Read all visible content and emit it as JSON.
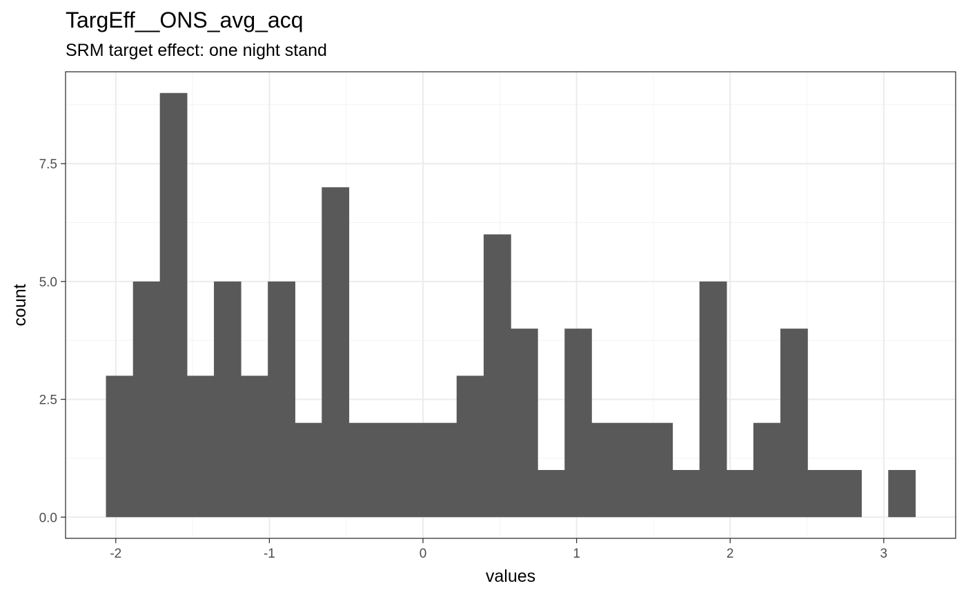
{
  "chart_data": {
    "type": "bar",
    "title": "TargEff__ONS_avg_acq",
    "subtitle": "SRM target effect: one night stand",
    "xlabel": "values",
    "ylabel": "count",
    "bin_width": 0.1756,
    "bins": [
      {
        "x0": -2.064,
        "x1": -1.888,
        "count": 3
      },
      {
        "x0": -1.888,
        "x1": -1.713,
        "count": 5
      },
      {
        "x0": -1.713,
        "x1": -1.537,
        "count": 9
      },
      {
        "x0": -1.537,
        "x1": -1.361,
        "count": 3
      },
      {
        "x0": -1.361,
        "x1": -1.186,
        "count": 5
      },
      {
        "x0": -1.186,
        "x1": -1.01,
        "count": 3
      },
      {
        "x0": -1.01,
        "x1": -0.834,
        "count": 5
      },
      {
        "x0": -0.834,
        "x1": -0.659,
        "count": 2
      },
      {
        "x0": -0.659,
        "x1": -0.483,
        "count": 7
      },
      {
        "x0": -0.483,
        "x1": -0.308,
        "count": 2
      },
      {
        "x0": -0.308,
        "x1": -0.132,
        "count": 2
      },
      {
        "x0": -0.132,
        "x1": 0.044,
        "count": 2
      },
      {
        "x0": 0.044,
        "x1": 0.219,
        "count": 2
      },
      {
        "x0": 0.219,
        "x1": 0.395,
        "count": 3
      },
      {
        "x0": 0.395,
        "x1": 0.571,
        "count": 6
      },
      {
        "x0": 0.571,
        "x1": 0.746,
        "count": 4
      },
      {
        "x0": 0.746,
        "x1": 0.922,
        "count": 1
      },
      {
        "x0": 0.922,
        "x1": 1.097,
        "count": 4
      },
      {
        "x0": 1.097,
        "x1": 1.273,
        "count": 2
      },
      {
        "x0": 1.273,
        "x1": 1.449,
        "count": 2
      },
      {
        "x0": 1.449,
        "x1": 1.624,
        "count": 2
      },
      {
        "x0": 1.624,
        "x1": 1.8,
        "count": 1
      },
      {
        "x0": 1.8,
        "x1": 1.976,
        "count": 5
      },
      {
        "x0": 1.976,
        "x1": 2.151,
        "count": 1
      },
      {
        "x0": 2.151,
        "x1": 2.327,
        "count": 2
      },
      {
        "x0": 2.327,
        "x1": 2.503,
        "count": 4
      },
      {
        "x0": 2.503,
        "x1": 2.678,
        "count": 1
      },
      {
        "x0": 2.678,
        "x1": 2.854,
        "count": 1
      },
      {
        "x0": 2.854,
        "x1": 3.029,
        "count": 0
      },
      {
        "x0": 3.029,
        "x1": 3.205,
        "count": 1
      }
    ],
    "xlim": [
      -2.327,
      3.468
    ],
    "ylim": [
      -0.45,
      9.45
    ],
    "x_ticks": [
      -2,
      -1,
      0,
      1,
      2,
      3
    ],
    "x_tick_labels": [
      "-2",
      "-1",
      "0",
      "1",
      "2",
      "3"
    ],
    "x_minor_ticks": [
      -1.5,
      -0.5,
      0.5,
      1.5,
      2.5
    ],
    "y_ticks": [
      0,
      2.5,
      5,
      7.5
    ],
    "y_tick_labels": [
      "0.0",
      "2.5",
      "5.0",
      "7.5"
    ],
    "y_minor_ticks": [
      1.25,
      3.75,
      6.25,
      8.75
    ],
    "grid": true,
    "bar_color": "#595959",
    "panel_border_color": "#333333",
    "grid_major_color": "#ebebeb",
    "grid_minor_color": "#f3f3f3"
  }
}
